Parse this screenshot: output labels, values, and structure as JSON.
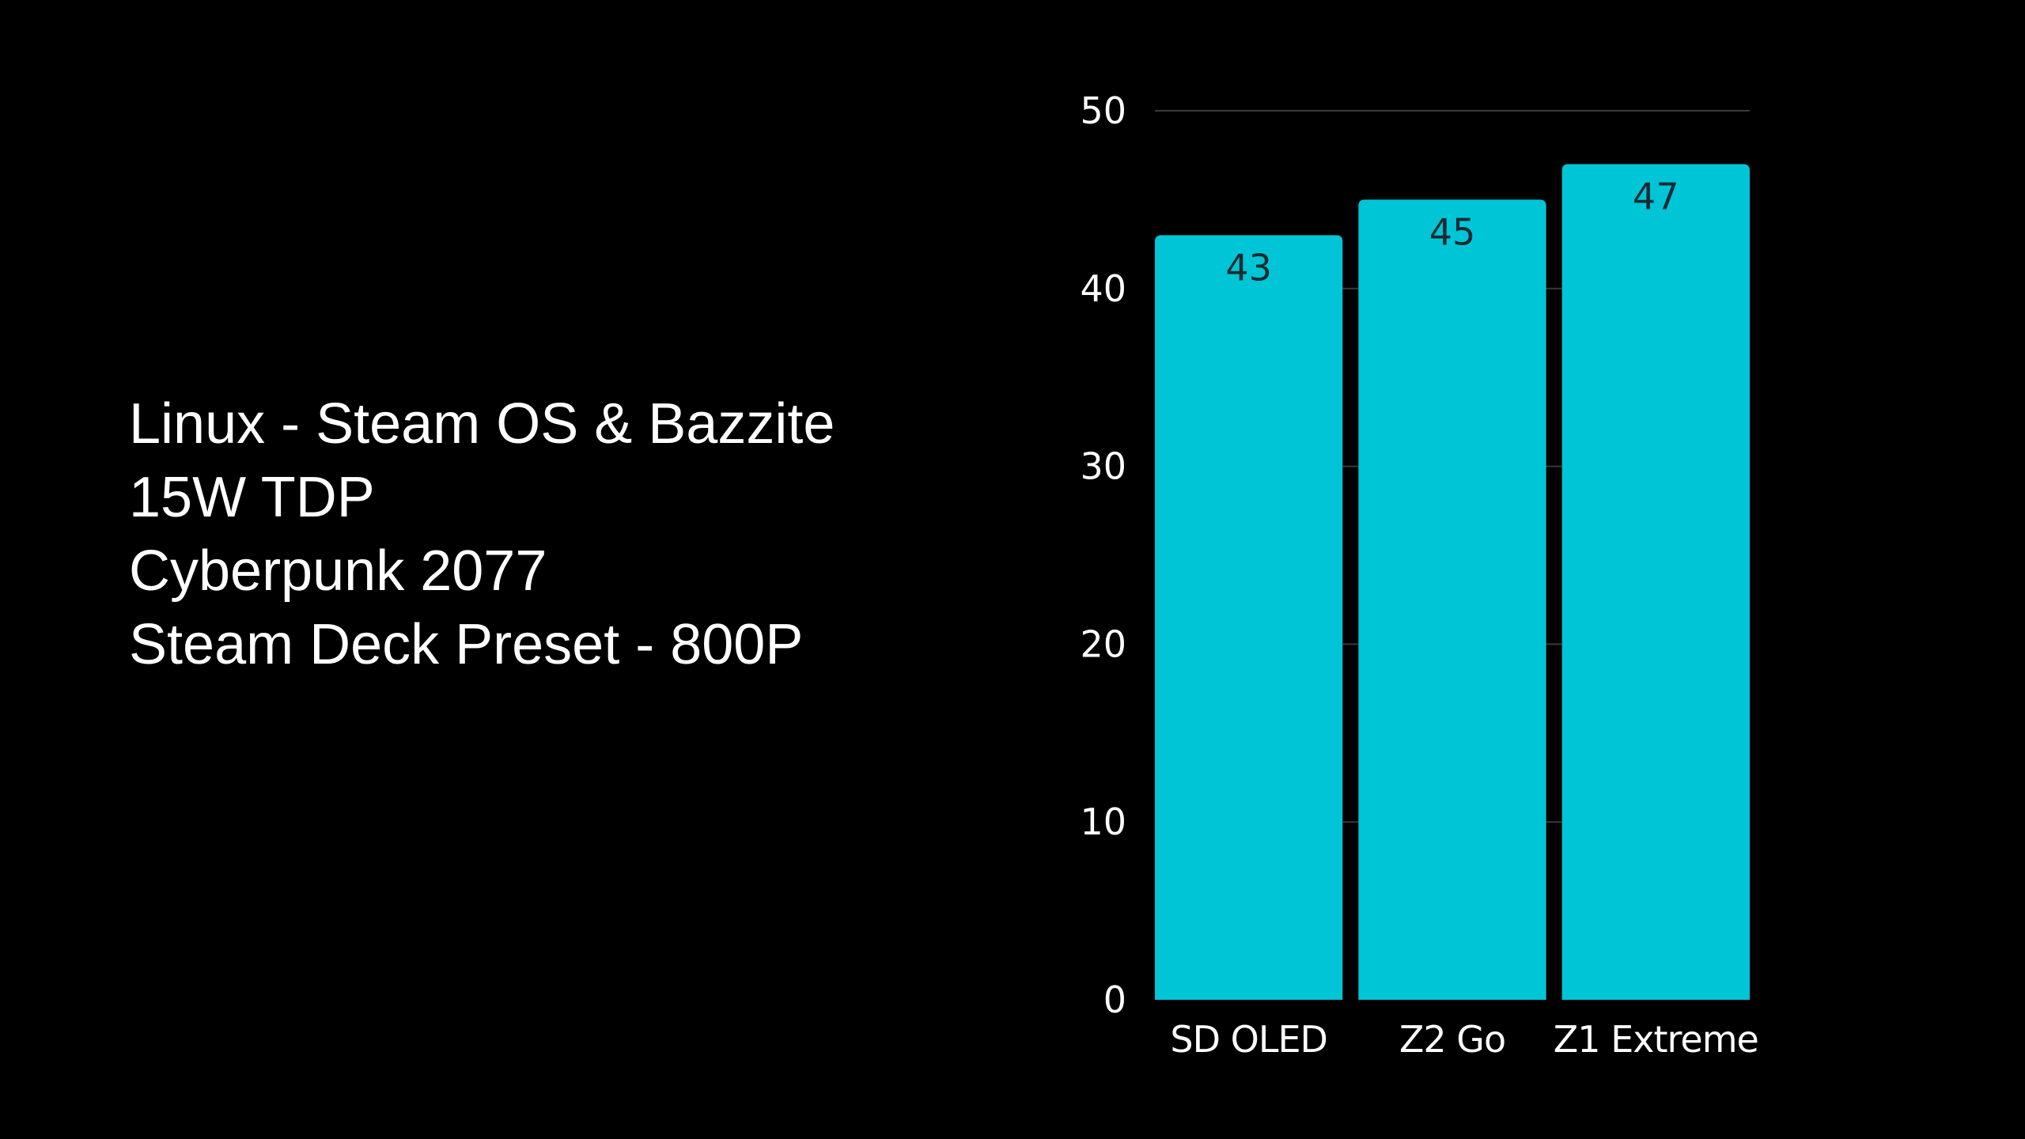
{
  "info": {
    "lines": [
      "Linux - Steam OS & Bazzite",
      "15W TDP",
      "Cyberpunk 2077",
      "Steam Deck Preset - 800P"
    ]
  },
  "chart_data": {
    "type": "bar",
    "title": "",
    "xlabel": "",
    "ylabel": "",
    "categories": [
      "SD OLED",
      "Z2 Go",
      "Z1 Extreme"
    ],
    "values": [
      43,
      45,
      47
    ],
    "data_labels": [
      "43",
      "45",
      "47"
    ],
    "ylim": [
      0,
      50
    ],
    "yticks": [
      0,
      10,
      20,
      30,
      40,
      50
    ],
    "ytick_labels": [
      "0",
      "10",
      "20",
      "30",
      "40",
      "50"
    ],
    "grid": true,
    "bar_color": "#00c5d7",
    "grid_color": "#3a3a3a",
    "background": "#000000"
  }
}
